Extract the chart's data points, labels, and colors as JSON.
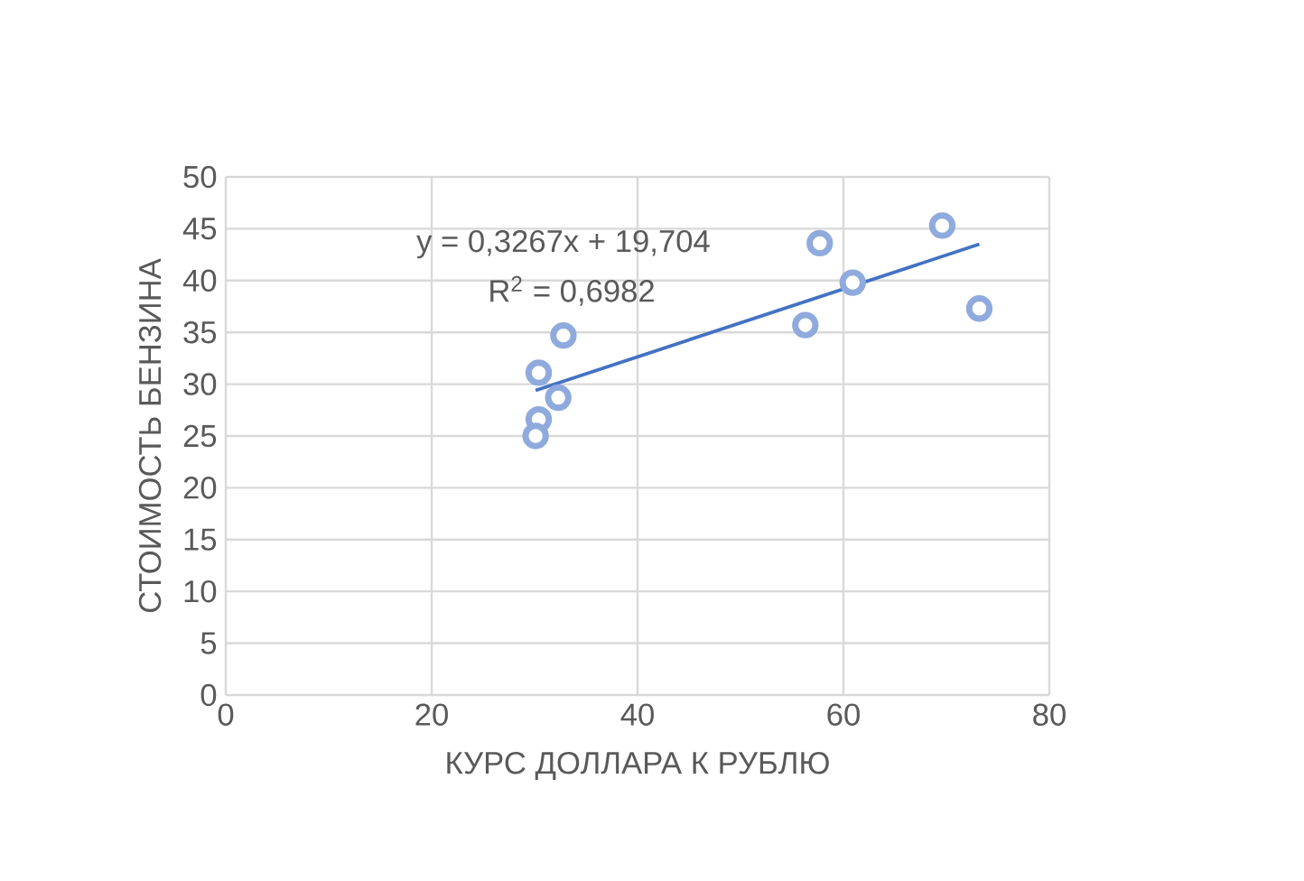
{
  "chart_data": {
    "type": "scatter",
    "xlabel": "КУРС ДОЛЛАРА К РУБЛЮ",
    "ylabel": "СТОИМОСТЬ БЕНЗИНА",
    "annotations": [
      "y = 0,3267x + 19,704",
      "R$^{2}$ = 0,6982"
    ],
    "series": [
      {
        "color": "#8faadc",
        "marker": "circle",
        "x": [
          30.4,
          32.8,
          32.3,
          30.4,
          30.1,
          57.7,
          60.9,
          56.3,
          69.6,
          73.2
        ],
        "values": [
          31.1,
          34.7,
          28.7,
          26.6,
          25.0,
          43.6,
          39.8,
          35.7,
          45.3,
          37.3
        ]
      },
      {
        "type": "line",
        "color": "#4472c4",
        "x": [
          30.1,
          73.2
        ],
        "values": [
          29.4,
          43.5
        ]
      }
    ],
    "xlim": [
      0,
      80
    ],
    "xticks": [
      0,
      20,
      40,
      60,
      80
    ],
    "ylim": [
      0,
      50
    ],
    "yticks": [
      0,
      5,
      10,
      15,
      20,
      25,
      30,
      35,
      40,
      45,
      50
    ],
    "grid": true
  }
}
